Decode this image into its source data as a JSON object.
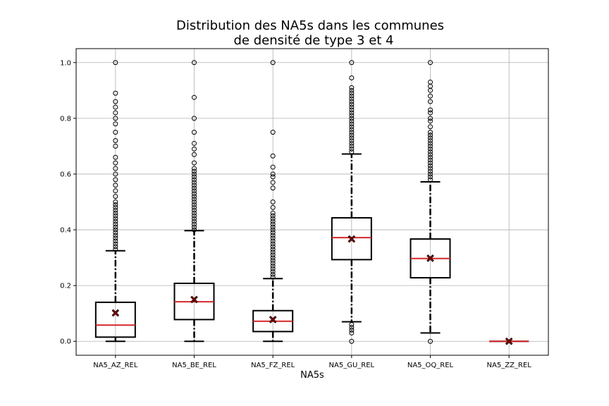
{
  "chart_data": {
    "type": "boxplot",
    "title_line1": "Distribution des NA5s dans les communes",
    "title_line2": "de densité de type 3 et 4",
    "xlabel": "NA5s",
    "ylabel": "",
    "ylim": [
      -0.05,
      1.05
    ],
    "yticks": [
      0.0,
      0.2,
      0.4,
      0.6,
      0.8,
      1.0
    ],
    "ytick_labels": [
      "0.0",
      "0.2",
      "0.4",
      "0.6",
      "0.8",
      "1.0"
    ],
    "grid": true,
    "categories": [
      "NA5_AZ_REL",
      "NA5_BE_REL",
      "NA5_FZ_REL",
      "NA5_GU_REL",
      "NA5_OQ_REL",
      "NA5_ZZ_REL"
    ],
    "boxes": [
      {
        "name": "NA5_AZ_REL",
        "whisker_low": 0.0,
        "q1": 0.015,
        "median": 0.058,
        "q3": 0.14,
        "whisker_high": 0.325,
        "mean": 0.102,
        "outliers_low": [],
        "outliers_high": [
          0.33,
          0.34,
          0.35,
          0.36,
          0.37,
          0.38,
          0.39,
          0.4,
          0.41,
          0.42,
          0.43,
          0.44,
          0.45,
          0.46,
          0.47,
          0.48,
          0.49,
          0.5,
          0.52,
          0.54,
          0.56,
          0.58,
          0.6,
          0.62,
          0.64,
          0.66,
          0.7,
          0.72,
          0.75,
          0.78,
          0.8,
          0.82,
          0.84,
          0.86,
          0.89,
          1.0
        ]
      },
      {
        "name": "NA5_BE_REL",
        "whisker_low": 0.0,
        "q1": 0.078,
        "median": 0.142,
        "q3": 0.208,
        "whisker_high": 0.397,
        "mean": 0.15,
        "outliers_low": [],
        "outliers_high": [
          0.4,
          0.41,
          0.42,
          0.43,
          0.44,
          0.45,
          0.46,
          0.47,
          0.48,
          0.49,
          0.5,
          0.51,
          0.52,
          0.53,
          0.54,
          0.55,
          0.56,
          0.57,
          0.58,
          0.59,
          0.6,
          0.61,
          0.62,
          0.64,
          0.67,
          0.69,
          0.71,
          0.75,
          0.8,
          0.875,
          1.0
        ]
      },
      {
        "name": "NA5_FZ_REL",
        "whisker_low": 0.0,
        "q1": 0.035,
        "median": 0.072,
        "q3": 0.11,
        "whisker_high": 0.225,
        "mean": 0.078,
        "outliers_low": [],
        "outliers_high": [
          0.23,
          0.24,
          0.25,
          0.26,
          0.27,
          0.28,
          0.29,
          0.3,
          0.31,
          0.32,
          0.33,
          0.34,
          0.35,
          0.36,
          0.37,
          0.38,
          0.39,
          0.4,
          0.41,
          0.42,
          0.43,
          0.44,
          0.45,
          0.46,
          0.48,
          0.5,
          0.55,
          0.57,
          0.59,
          0.6,
          0.625,
          0.665,
          0.75,
          1.0
        ]
      },
      {
        "name": "NA5_GU_REL",
        "whisker_low": 0.07,
        "q1": 0.293,
        "median": 0.372,
        "q3": 0.443,
        "whisker_high": 0.672,
        "mean": 0.367,
        "outliers_low": [
          0.0,
          0.03,
          0.04,
          0.05,
          0.06
        ],
        "outliers_high": [
          0.68,
          0.69,
          0.7,
          0.71,
          0.72,
          0.73,
          0.74,
          0.75,
          0.76,
          0.77,
          0.78,
          0.79,
          0.8,
          0.81,
          0.82,
          0.83,
          0.84,
          0.85,
          0.86,
          0.87,
          0.88,
          0.89,
          0.9,
          0.91,
          0.945,
          1.0
        ]
      },
      {
        "name": "NA5_OQ_REL",
        "whisker_low": 0.03,
        "q1": 0.228,
        "median": 0.297,
        "q3": 0.367,
        "whisker_high": 0.572,
        "mean": 0.298,
        "outliers_low": [
          0.0
        ],
        "outliers_high": [
          0.58,
          0.59,
          0.6,
          0.61,
          0.62,
          0.63,
          0.64,
          0.65,
          0.66,
          0.67,
          0.68,
          0.69,
          0.7,
          0.71,
          0.72,
          0.73,
          0.74,
          0.75,
          0.77,
          0.79,
          0.8,
          0.82,
          0.83,
          0.86,
          0.88,
          0.9,
          0.915,
          0.93,
          1.0
        ]
      },
      {
        "name": "NA5_ZZ_REL",
        "whisker_low": 0.0,
        "q1": 0.0,
        "median": 0.0,
        "q3": 0.0,
        "whisker_high": 0.0,
        "mean": 0.0,
        "outliers_low": [],
        "outliers_high": []
      }
    ],
    "colors": {
      "box": "#000000",
      "median": "#d62728",
      "mean_marker": "#800000",
      "grid": "#b0b0b0",
      "outlier": "#000000"
    }
  }
}
